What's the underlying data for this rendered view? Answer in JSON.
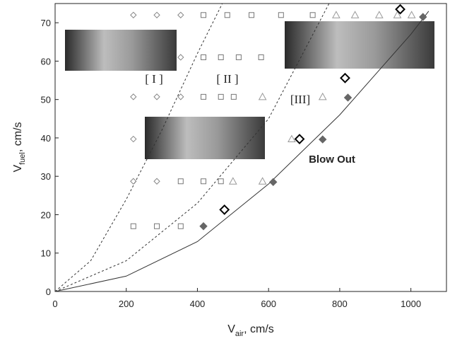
{
  "chart_data": {
    "type": "scatter",
    "xlabel": {
      "main": "V",
      "sub": "air",
      "unit": ", cm/s"
    },
    "ylabel": {
      "main": "V",
      "sub": "fuel",
      "unit": ", cm/s"
    },
    "annotations": [
      "[ I ]",
      "[ II ]",
      "[III]",
      "Blow Out"
    ],
    "xlim": [
      0,
      1100
    ],
    "ylim": [
      0,
      75
    ],
    "xticks": [
      0,
      200,
      400,
      600,
      800,
      1000
    ],
    "yticks": [
      0,
      10,
      20,
      30,
      40,
      50,
      60,
      70
    ],
    "series": [
      {
        "marker": "diamond",
        "color": "#888888",
        "x": [
          220,
          286,
          353,
          353,
          220,
          286,
          353,
          220,
          220,
          286
        ],
        "values": [
          72,
          72,
          72,
          61,
          50.7,
          50.7,
          50.7,
          39.7,
          28.7,
          28.7
        ]
      },
      {
        "marker": "square",
        "color": "#777777",
        "x": [
          417,
          484,
          552,
          635,
          724,
          417,
          466,
          516,
          579,
          417,
          466,
          502,
          353,
          417,
          466,
          220,
          286,
          353
        ],
        "values": [
          72,
          72,
          72,
          72,
          72,
          61,
          61,
          61,
          61,
          50.7,
          50.7,
          50.7,
          28.7,
          28.7,
          28.7,
          17,
          17,
          17
        ]
      },
      {
        "marker": "triangle",
        "color": "#999999",
        "x": [
          790,
          843,
          911,
          962,
          1002,
          583,
          752,
          665,
          500,
          583
        ],
        "values": [
          72,
          72,
          72,
          72,
          72,
          50.7,
          50.7,
          39.7,
          28.7,
          28.7
        ]
      },
      {
        "marker": "filled-diamond",
        "color": "#666666",
        "x": [
          1034,
          823,
          752,
          613,
          417
        ],
        "values": [
          71.5,
          50.5,
          39.6,
          28.5,
          17
        ]
      },
      {
        "marker": "big-diamond",
        "color": "#000000",
        "x": [
          476,
          687,
          815,
          970
        ],
        "values": [
          21.3,
          39.7,
          55.6,
          73.5
        ]
      }
    ],
    "curves": [
      {
        "dash": true,
        "color": "#333333",
        "x": [
          0,
          100,
          200,
          300,
          400,
          470
        ],
        "values": [
          0,
          8,
          24,
          42,
          62,
          75
        ]
      },
      {
        "dash": true,
        "color": "#333333",
        "x": [
          0,
          200,
          400,
          600,
          770
        ],
        "values": [
          0,
          8,
          23,
          45,
          75
        ]
      },
      {
        "dash": false,
        "color": "#333333",
        "x": [
          0,
          200,
          400,
          600,
          800,
          1000,
          1050
        ],
        "values": [
          0,
          4,
          13,
          28,
          46,
          67,
          73
        ]
      }
    ]
  }
}
